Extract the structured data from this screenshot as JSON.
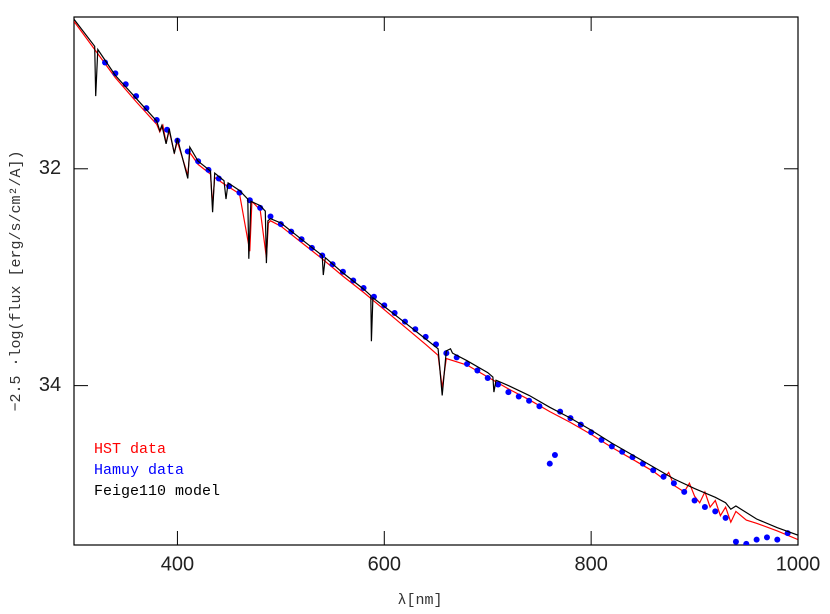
{
  "chart_data": {
    "type": "line",
    "xlabel": "λ[nm]",
    "ylabel": "−2.5 ·log(flux [erg/s/cm²/A])",
    "xlim": [
      300,
      1000
    ],
    "ylim": [
      30.6,
      35.47
    ],
    "y_inverted": true,
    "xticks": [
      400,
      600,
      800,
      1000
    ],
    "yticks": [
      32,
      34
    ],
    "legend": "lower left",
    "series": [
      {
        "name": "HST data",
        "color": "#ff0000",
        "type": "line",
        "x": [
          300,
          320,
          340,
          360,
          380,
          383,
          386,
          389,
          392,
          397,
          400,
          410,
          412,
          420,
          432,
          434,
          436,
          445,
          460,
          470,
          472,
          480,
          486,
          488,
          490,
          500,
          520,
          540,
          560,
          580,
          600,
          620,
          640,
          652,
          656,
          660,
          680,
          700,
          720,
          740,
          760,
          780,
          800,
          820,
          840,
          860,
          870,
          875,
          880,
          890,
          895,
          900,
          905,
          910,
          915,
          920,
          925,
          930,
          935,
          940,
          950,
          960,
          980,
          1000
        ],
        "values": [
          30.64,
          30.9,
          31.16,
          31.38,
          31.59,
          31.66,
          31.6,
          31.76,
          31.65,
          31.85,
          31.75,
          32.06,
          31.85,
          31.96,
          32.05,
          32.34,
          32.08,
          32.14,
          32.23,
          32.76,
          32.3,
          32.38,
          32.82,
          32.5,
          32.48,
          32.53,
          32.68,
          32.83,
          32.99,
          33.14,
          33.3,
          33.46,
          33.62,
          33.72,
          34.02,
          33.75,
          33.81,
          33.92,
          34.03,
          34.13,
          34.24,
          34.34,
          34.45,
          34.57,
          34.68,
          34.79,
          34.86,
          34.8,
          34.92,
          34.98,
          34.9,
          35.02,
          35.08,
          34.98,
          35.12,
          35.06,
          35.2,
          35.12,
          35.26,
          35.16,
          35.24,
          35.27,
          35.34,
          35.42
        ]
      },
      {
        "name": "Hamuy data",
        "color": "#0000ff",
        "type": "scatter",
        "x": [
          330,
          340,
          350,
          360,
          370,
          380,
          390,
          400,
          410,
          420,
          430,
          440,
          450,
          460,
          470,
          480,
          490,
          500,
          510,
          520,
          530,
          540,
          550,
          560,
          570,
          580,
          590,
          600,
          610,
          620,
          630,
          640,
          650,
          660,
          670,
          680,
          690,
          700,
          710,
          720,
          730,
          740,
          750,
          760,
          765,
          770,
          780,
          790,
          800,
          810,
          820,
          830,
          840,
          850,
          860,
          870,
          880,
          890,
          900,
          910,
          920,
          930,
          940,
          950,
          960,
          970,
          980,
          990
        ],
        "values": [
          31.02,
          31.12,
          31.22,
          31.33,
          31.44,
          31.55,
          31.64,
          31.74,
          31.84,
          31.93,
          32.01,
          32.09,
          32.16,
          32.22,
          32.29,
          32.36,
          32.44,
          32.51,
          32.58,
          32.65,
          32.73,
          32.8,
          32.88,
          32.95,
          33.03,
          33.1,
          33.18,
          33.26,
          33.33,
          33.41,
          33.48,
          33.55,
          33.62,
          33.7,
          33.74,
          33.8,
          33.86,
          33.93,
          33.99,
          34.06,
          34.1,
          34.14,
          34.19,
          34.72,
          34.64,
          34.24,
          34.3,
          34.36,
          34.43,
          34.5,
          34.56,
          34.61,
          34.66,
          34.72,
          34.78,
          34.84,
          34.9,
          34.98,
          35.06,
          35.12,
          35.16,
          35.22,
          35.44,
          35.46,
          35.42,
          35.4,
          35.42,
          35.36
        ]
      },
      {
        "name": "Feige110 model",
        "color": "#000000",
        "type": "line",
        "x": [
          300,
          320,
          321,
          323,
          340,
          360,
          380,
          383,
          385,
          389,
          392,
          397,
          400,
          410,
          412,
          420,
          432,
          434,
          436,
          445,
          447,
          449,
          460,
          468,
          469,
          471,
          480,
          485,
          486,
          487.5,
          490,
          500,
          520,
          540,
          541,
          543,
          560,
          580,
          587,
          587.5,
          589,
          600,
          620,
          640,
          652,
          656,
          660,
          664,
          666,
          680,
          700,
          705,
          706,
          708,
          720,
          740,
          760,
          780,
          800,
          820,
          840,
          860,
          880,
          900,
          920,
          930,
          935,
          940,
          960,
          980,
          1000
        ],
        "values": [
          30.62,
          30.87,
          31.33,
          30.9,
          31.14,
          31.35,
          31.56,
          31.65,
          31.6,
          31.77,
          31.63,
          31.86,
          31.72,
          32.09,
          31.8,
          31.93,
          32.02,
          32.4,
          32.04,
          32.11,
          32.28,
          32.13,
          32.2,
          32.28,
          32.83,
          32.3,
          32.34,
          32.39,
          32.87,
          32.48,
          32.46,
          32.5,
          32.65,
          32.8,
          32.98,
          32.82,
          32.96,
          33.11,
          33.17,
          33.59,
          33.19,
          33.27,
          33.42,
          33.57,
          33.66,
          34.09,
          33.68,
          33.66,
          33.7,
          33.77,
          33.88,
          33.92,
          34.06,
          33.95,
          34.0,
          34.09,
          34.2,
          34.3,
          34.41,
          34.53,
          34.64,
          34.75,
          34.86,
          34.95,
          35.03,
          35.08,
          35.14,
          35.11,
          35.23,
          35.31,
          35.38
        ]
      }
    ]
  }
}
